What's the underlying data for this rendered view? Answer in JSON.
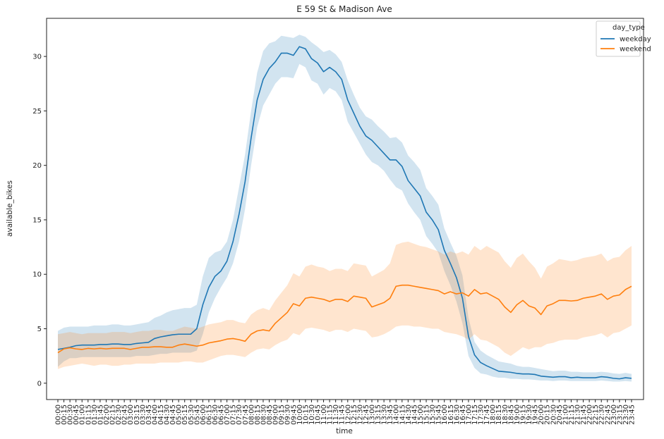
{
  "chart_data": {
    "type": "line",
    "title": "E 59 St & Madison Ave",
    "xlabel": "time",
    "ylabel": "available_bikes",
    "ylim": [
      -1.5,
      33.5
    ],
    "yticks": [
      0,
      5,
      10,
      15,
      20,
      25,
      30
    ],
    "grid": false,
    "legend": {
      "title": "day_type",
      "placement": "top-right"
    },
    "x": [
      "00:00",
      "00:15",
      "00:30",
      "00:45",
      "01:00",
      "01:15",
      "01:30",
      "01:45",
      "02:00",
      "02:15",
      "02:30",
      "02:45",
      "03:00",
      "03:15",
      "03:30",
      "03:45",
      "04:00",
      "04:15",
      "04:30",
      "04:45",
      "05:00",
      "05:15",
      "05:30",
      "05:45",
      "06:00",
      "06:15",
      "06:30",
      "06:45",
      "07:00",
      "07:15",
      "07:30",
      "07:45",
      "08:00",
      "08:15",
      "08:30",
      "08:45",
      "09:00",
      "09:15",
      "09:30",
      "09:45",
      "10:00",
      "10:15",
      "10:30",
      "10:45",
      "11:00",
      "11:15",
      "11:30",
      "11:45",
      "12:00",
      "12:15",
      "12:30",
      "12:45",
      "13:00",
      "13:15",
      "13:30",
      "13:45",
      "14:00",
      "14:15",
      "14:30",
      "14:45",
      "15:00",
      "15:15",
      "15:30",
      "15:45",
      "16:00",
      "16:15",
      "16:30",
      "16:45",
      "17:00",
      "17:15",
      "17:30",
      "17:45",
      "18:00",
      "18:15",
      "18:30",
      "18:45",
      "19:00",
      "19:15",
      "19:30",
      "19:45",
      "20:00",
      "20:15",
      "20:30",
      "20:45",
      "21:00",
      "21:15",
      "21:30",
      "21:45",
      "22:00",
      "22:15",
      "22:30",
      "22:45",
      "23:00",
      "23:15",
      "23:30",
      "23:45"
    ],
    "series": [
      {
        "name": "weekday",
        "color": "#1f77b4",
        "values": [
          3.1,
          3.2,
          3.3,
          3.45,
          3.5,
          3.5,
          3.5,
          3.55,
          3.55,
          3.6,
          3.6,
          3.55,
          3.55,
          3.65,
          3.7,
          3.75,
          4.1,
          4.25,
          4.35,
          4.45,
          4.5,
          4.5,
          4.5,
          5.0,
          7.2,
          8.8,
          9.8,
          10.3,
          11.2,
          13.0,
          15.5,
          18.5,
          22.5,
          26.0,
          27.9,
          28.9,
          29.5,
          30.3,
          30.3,
          30.1,
          30.9,
          30.7,
          29.8,
          29.4,
          28.6,
          29.0,
          28.6,
          27.9,
          26.0,
          24.8,
          23.6,
          22.7,
          22.3,
          21.7,
          21.1,
          20.5,
          20.5,
          19.9,
          18.6,
          17.9,
          17.2,
          15.7,
          15.0,
          14.1,
          12.2,
          11.0,
          9.7,
          7.8,
          4.3,
          2.6,
          1.9,
          1.6,
          1.35,
          1.1,
          1.05,
          1.0,
          0.9,
          0.85,
          0.85,
          0.8,
          0.65,
          0.6,
          0.55,
          0.6,
          0.6,
          0.5,
          0.55,
          0.5,
          0.5,
          0.5,
          0.6,
          0.55,
          0.45,
          0.4,
          0.5,
          0.45
        ],
        "lower": [
          1.5,
          2.0,
          2.3,
          2.3,
          2.4,
          2.4,
          2.4,
          2.4,
          2.4,
          2.4,
          2.4,
          2.4,
          2.4,
          2.5,
          2.5,
          2.5,
          2.6,
          2.7,
          2.7,
          2.8,
          2.8,
          2.8,
          2.8,
          3.0,
          4.5,
          6.5,
          7.8,
          8.8,
          9.7,
          11.0,
          13.0,
          16.0,
          20.0,
          23.5,
          25.5,
          26.5,
          27.5,
          28.1,
          28.1,
          28.0,
          29.3,
          29.0,
          27.8,
          27.5,
          26.5,
          27.1,
          26.8,
          26.0,
          24.0,
          23.0,
          22.0,
          21.0,
          20.3,
          20.0,
          19.5,
          18.7,
          18.0,
          17.7,
          16.5,
          15.7,
          15.0,
          13.5,
          12.8,
          12.0,
          10.3,
          9.0,
          7.5,
          5.5,
          2.5,
          1.4,
          0.9,
          0.8,
          0.6,
          0.5,
          0.5,
          0.4,
          0.4,
          0.35,
          0.35,
          0.3,
          0.25,
          0.25,
          0.2,
          0.25,
          0.25,
          0.2,
          0.2,
          0.2,
          0.2,
          0.2,
          0.25,
          0.2,
          0.15,
          0.15,
          0.2,
          0.15
        ],
        "upper": [
          4.8,
          5.1,
          5.2,
          5.2,
          5.2,
          5.2,
          5.3,
          5.3,
          5.3,
          5.4,
          5.4,
          5.3,
          5.3,
          5.4,
          5.5,
          5.6,
          6.0,
          6.2,
          6.5,
          6.7,
          6.8,
          6.9,
          6.9,
          7.2,
          9.8,
          11.5,
          12.0,
          12.2,
          13.0,
          15.0,
          18.0,
          21.0,
          25.0,
          28.5,
          30.5,
          31.2,
          31.4,
          31.9,
          31.8,
          31.7,
          32.0,
          31.8,
          31.3,
          30.9,
          30.4,
          30.6,
          30.2,
          29.5,
          27.8,
          26.5,
          25.3,
          24.5,
          24.2,
          23.6,
          23.1,
          22.5,
          22.6,
          22.1,
          20.9,
          20.3,
          19.6,
          17.9,
          17.2,
          16.4,
          14.2,
          12.9,
          11.7,
          9.9,
          6.0,
          3.8,
          3.0,
          2.6,
          2.3,
          2.0,
          1.9,
          1.8,
          1.6,
          1.5,
          1.5,
          1.4,
          1.3,
          1.2,
          1.1,
          1.15,
          1.15,
          1.05,
          1.05,
          1.0,
          1.0,
          1.0,
          1.05,
          1.0,
          0.9,
          0.85,
          0.95,
          0.85
        ]
      },
      {
        "name": "weekend",
        "color": "#ff7f0e",
        "values": [
          2.8,
          3.15,
          3.25,
          3.15,
          3.1,
          3.2,
          3.15,
          3.2,
          3.15,
          3.2,
          3.2,
          3.2,
          3.1,
          3.2,
          3.3,
          3.3,
          3.35,
          3.35,
          3.3,
          3.3,
          3.5,
          3.6,
          3.5,
          3.4,
          3.5,
          3.7,
          3.8,
          3.9,
          4.05,
          4.1,
          4.0,
          3.85,
          4.5,
          4.8,
          4.9,
          4.8,
          5.5,
          6.0,
          6.5,
          7.3,
          7.1,
          7.8,
          7.9,
          7.8,
          7.7,
          7.5,
          7.7,
          7.7,
          7.5,
          8.0,
          7.9,
          7.8,
          7.0,
          7.2,
          7.4,
          7.8,
          8.9,
          9.0,
          9.0,
          8.9,
          8.8,
          8.7,
          8.6,
          8.5,
          8.2,
          8.4,
          8.2,
          8.3,
          8.0,
          8.6,
          8.2,
          8.3,
          8.0,
          7.7,
          7.0,
          6.5,
          7.2,
          7.6,
          7.1,
          6.9,
          6.3,
          7.1,
          7.3,
          7.6,
          7.6,
          7.55,
          7.6,
          7.8,
          7.9,
          8.0,
          8.2,
          7.7,
          8.0,
          8.1,
          8.6,
          8.9
        ],
        "lower": [
          1.3,
          1.5,
          1.6,
          1.7,
          1.8,
          1.7,
          1.6,
          1.7,
          1.7,
          1.6,
          1.6,
          1.7,
          1.7,
          1.8,
          1.8,
          1.8,
          1.8,
          1.9,
          1.9,
          1.9,
          1.9,
          2.0,
          2.0,
          1.9,
          1.9,
          2.1,
          2.3,
          2.5,
          2.6,
          2.6,
          2.5,
          2.4,
          2.8,
          3.1,
          3.2,
          3.1,
          3.5,
          3.8,
          4.0,
          4.6,
          4.4,
          5.0,
          5.1,
          5.0,
          4.9,
          4.7,
          4.9,
          4.9,
          4.7,
          5.0,
          4.9,
          4.8,
          4.2,
          4.3,
          4.5,
          4.8,
          5.2,
          5.3,
          5.3,
          5.2,
          5.2,
          5.1,
          5.0,
          5.0,
          4.7,
          4.6,
          4.5,
          4.3,
          4.0,
          4.5,
          4.0,
          3.9,
          3.6,
          3.3,
          2.8,
          2.5,
          2.9,
          3.3,
          3.1,
          3.3,
          3.3,
          3.6,
          3.7,
          3.9,
          4.0,
          4.0,
          4.0,
          4.2,
          4.3,
          4.4,
          4.6,
          4.2,
          4.6,
          4.7,
          5.0,
          5.3
        ],
        "upper": [
          4.5,
          4.6,
          4.7,
          4.6,
          4.5,
          4.6,
          4.6,
          4.6,
          4.6,
          4.7,
          4.7,
          4.7,
          4.6,
          4.7,
          4.8,
          4.8,
          4.9,
          4.9,
          4.8,
          4.8,
          5.0,
          5.2,
          5.1,
          5.0,
          5.2,
          5.4,
          5.5,
          5.6,
          5.8,
          5.8,
          5.6,
          5.5,
          6.3,
          6.7,
          6.9,
          6.7,
          7.6,
          8.3,
          9.0,
          10.1,
          9.8,
          10.7,
          10.9,
          10.7,
          10.6,
          10.3,
          10.5,
          10.5,
          10.3,
          11.0,
          10.9,
          10.8,
          9.8,
          10.1,
          10.4,
          11.0,
          12.7,
          12.9,
          13.0,
          12.8,
          12.6,
          12.5,
          12.3,
          12.1,
          11.8,
          12.1,
          11.9,
          12.1,
          11.8,
          12.6,
          12.2,
          12.6,
          12.3,
          12.0,
          11.2,
          10.6,
          11.5,
          11.9,
          11.2,
          10.6,
          9.6,
          10.7,
          11.0,
          11.4,
          11.3,
          11.2,
          11.3,
          11.5,
          11.6,
          11.7,
          11.9,
          11.2,
          11.5,
          11.6,
          12.2,
          12.6
        ]
      }
    ]
  }
}
